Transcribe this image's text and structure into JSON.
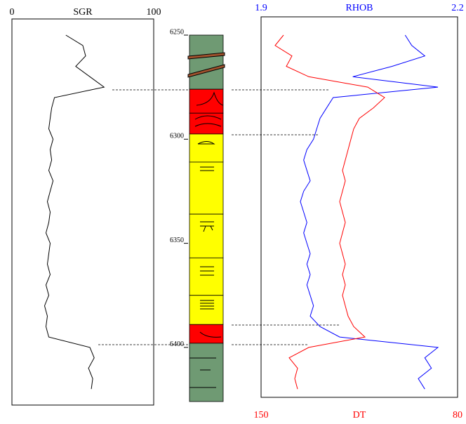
{
  "chart_data": {
    "type": "well-log",
    "depth": [
      6250,
      6255,
      6260,
      6265,
      6270,
      6275,
      6280,
      6285,
      6290,
      6295,
      6300,
      6305,
      6310,
      6315,
      6320,
      6325,
      6330,
      6335,
      6340,
      6345,
      6350,
      6355,
      6360,
      6365,
      6370,
      6375,
      6380,
      6385,
      6390,
      6395,
      6400,
      6405,
      6410,
      6415,
      6420
    ],
    "ylim": [
      6250,
      6426
    ],
    "yticks": [
      6250,
      6300,
      6350,
      6400
    ],
    "tracks": [
      {
        "series": [
          {
            "name": "SGR",
            "color": "#000000",
            "xlim": [
              0,
              100
            ],
            "xticks": [
              0,
              100
            ],
            "values": [
              38,
              50,
              52,
              45,
              55,
              65,
              30,
              28,
              27,
              26,
              29,
              27,
              28,
              26,
              29,
              27,
              25,
              27,
              26,
              24,
              27,
              26,
              25,
              27,
              24,
              26,
              23,
              25,
              24,
              26,
              55,
              58,
              54,
              57,
              56
            ]
          }
        ]
      },
      {
        "series": [
          {
            "name": "RHOB",
            "color": "#0000ff",
            "xlim": [
              1.9,
              2.2
            ],
            "xticks": [
              1.9,
              2.2
            ],
            "values": [
              2.12,
              2.13,
              2.15,
              2.1,
              2.04,
              2.17,
              2.01,
              2.0,
              1.99,
              1.985,
              1.98,
              1.97,
              1.965,
              1.97,
              1.975,
              1.965,
              1.96,
              1.965,
              1.97,
              1.965,
              1.97,
              1.975,
              1.97,
              1.975,
              1.97,
              1.975,
              1.98,
              1.975,
              1.99,
              2.02,
              2.17,
              2.15,
              2.16,
              2.14,
              2.15
            ]
          },
          {
            "name": "DT",
            "color": "#ff0000",
            "xlim": [
              150,
              80
            ],
            "xticks": [
              150,
              80
            ],
            "values": [
              142,
              145,
              139,
              141,
              133,
              112,
              106,
              110,
              115,
              117,
              118,
              119,
              120,
              121,
              120,
              121,
              122,
              121,
              120,
              121,
              122,
              121,
              120,
              121,
              120,
              121,
              120,
              119,
              117,
              113,
              133,
              140,
              137,
              138,
              137
            ]
          }
        ]
      }
    ],
    "lithology": {
      "tops": [
        6250,
        6276,
        6287.5,
        6297.5,
        6311,
        6336,
        6357,
        6375,
        6389,
        6398
      ],
      "bases": [
        6276,
        6287.5,
        6297.5,
        6311,
        6336,
        6357,
        6375,
        6389,
        6398,
        6426
      ],
      "colors": [
        "#6f9a73",
        "#ff0000",
        "#ff0000",
        "#ffff00",
        "#ffff00",
        "#ffff00",
        "#ffff00",
        "#ffff00",
        "#ff0000",
        "#6f9a73"
      ]
    }
  }
}
